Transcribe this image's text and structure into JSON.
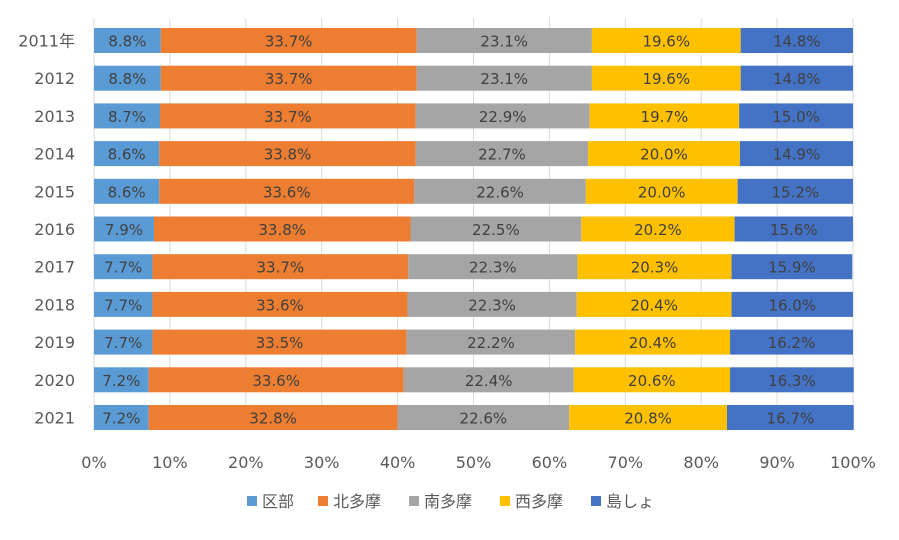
{
  "chart_data": {
    "type": "bar",
    "orientation": "horizontal",
    "stacked": "percent",
    "categories": [
      "2011年",
      "2012",
      "2013",
      "2014",
      "2015",
      "2016",
      "2017",
      "2018",
      "2019",
      "2020",
      "2021"
    ],
    "series": [
      {
        "name": "区部",
        "color": "#5b9bd5",
        "values": [
          8.8,
          8.8,
          8.7,
          8.6,
          8.6,
          7.9,
          7.7,
          7.7,
          7.7,
          7.2,
          7.2
        ]
      },
      {
        "name": "北多摩",
        "color": "#ed7d31",
        "values": [
          33.7,
          33.7,
          33.7,
          33.8,
          33.6,
          33.8,
          33.7,
          33.6,
          33.5,
          33.6,
          32.8
        ]
      },
      {
        "name": "南多摩",
        "color": "#a5a5a5",
        "values": [
          23.1,
          23.1,
          22.9,
          22.7,
          22.6,
          22.5,
          22.3,
          22.3,
          22.2,
          22.4,
          22.6
        ]
      },
      {
        "name": "西多摩",
        "color": "#ffc000",
        "values": [
          19.6,
          19.6,
          19.7,
          20.0,
          20.0,
          20.2,
          20.3,
          20.4,
          20.4,
          20.6,
          20.8
        ]
      },
      {
        "name": "島しょ",
        "color": "#4472c4",
        "values": [
          14.8,
          14.8,
          15.0,
          14.9,
          15.2,
          15.6,
          15.9,
          16.0,
          16.2,
          16.3,
          16.7
        ]
      }
    ],
    "value_format": "percent_1dp",
    "xlim": [
      0,
      100
    ],
    "x_ticks": [
      "0%",
      "10%",
      "20%",
      "30%",
      "40%",
      "50%",
      "60%",
      "70%",
      "80%",
      "90%",
      "100%"
    ],
    "grid": "vertical",
    "legend_position": "bottom",
    "title": "",
    "xlabel": "",
    "ylabel": ""
  }
}
